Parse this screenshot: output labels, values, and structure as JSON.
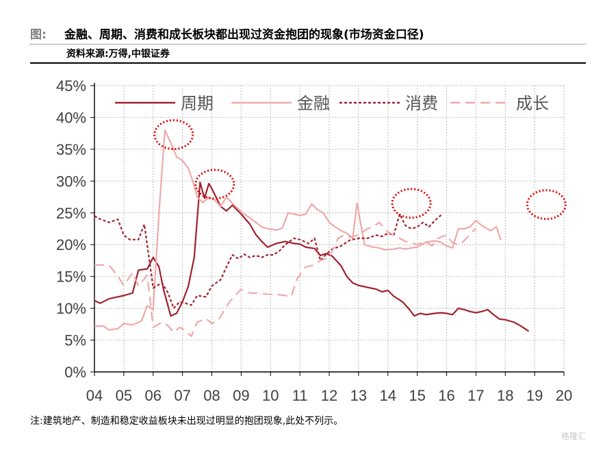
{
  "header": {
    "prefix": "图:",
    "title": "金融、周期、消费和成长板块都出现过资金抱团的现象(市场资金口径)",
    "source": "资料来源:万得,中银证券"
  },
  "footer": {
    "note": "注:建筑地产、制造和稳定收益板块未出现过明显的抱团现象,此处不列示。",
    "watermark": "格隆汇"
  },
  "chart_data": {
    "type": "line",
    "x_ticks": [
      "04",
      "05",
      "06",
      "07",
      "08",
      "09",
      "10",
      "11",
      "12",
      "13",
      "14",
      "15",
      "16",
      "17",
      "18",
      "19",
      "20"
    ],
    "y_ticks": [
      "0%",
      "5%",
      "10%",
      "15%",
      "20%",
      "25%",
      "30%",
      "35%",
      "40%",
      "45%"
    ],
    "ylim": [
      0,
      45
    ],
    "xlim": [
      2004,
      2020
    ],
    "grid": true,
    "legend_position": "top",
    "series": [
      {
        "name": "周期",
        "color": "#a0202c",
        "style": "solid",
        "points": [
          [
            2004.0,
            11.2
          ],
          [
            2004.2,
            10.8
          ],
          [
            2004.5,
            11.5
          ],
          [
            2005.0,
            12.0
          ],
          [
            2005.3,
            12.4
          ],
          [
            2005.5,
            16.0
          ],
          [
            2005.8,
            16.2
          ],
          [
            2006.0,
            18.0
          ],
          [
            2006.2,
            16.5
          ],
          [
            2006.35,
            13.0
          ],
          [
            2006.6,
            8.8
          ],
          [
            2006.8,
            9.2
          ],
          [
            2007.0,
            11.0
          ],
          [
            2007.2,
            13.5
          ],
          [
            2007.4,
            18.0
          ],
          [
            2007.5,
            24.0
          ],
          [
            2007.6,
            29.8
          ],
          [
            2007.75,
            27.3
          ],
          [
            2007.9,
            29.6
          ],
          [
            2008.0,
            28.8
          ],
          [
            2008.3,
            26.0
          ],
          [
            2008.5,
            25.3
          ],
          [
            2008.7,
            26.2
          ],
          [
            2009.0,
            24.8
          ],
          [
            2009.3,
            23.2
          ],
          [
            2009.5,
            21.6
          ],
          [
            2009.7,
            20.5
          ],
          [
            2009.9,
            19.6
          ],
          [
            2010.2,
            20.2
          ],
          [
            2010.5,
            20.5
          ],
          [
            2010.8,
            20.2
          ],
          [
            2011.0,
            20.1
          ],
          [
            2011.2,
            19.6
          ],
          [
            2011.5,
            19.4
          ],
          [
            2011.7,
            18.3
          ],
          [
            2011.9,
            18.6
          ],
          [
            2012.1,
            18.2
          ],
          [
            2012.4,
            16.7
          ],
          [
            2012.6,
            15.0
          ],
          [
            2012.8,
            14.0
          ],
          [
            2013.0,
            13.6
          ],
          [
            2013.3,
            13.3
          ],
          [
            2013.6,
            13.0
          ],
          [
            2013.8,
            12.6
          ],
          [
            2014.0,
            12.8
          ],
          [
            2014.2,
            11.9
          ],
          [
            2014.5,
            11.0
          ],
          [
            2014.7,
            10.0
          ],
          [
            2014.9,
            8.8
          ],
          [
            2015.1,
            9.2
          ],
          [
            2015.3,
            9.0
          ],
          [
            2015.6,
            9.2
          ],
          [
            2015.8,
            9.3
          ],
          [
            2016.0,
            9.2
          ],
          [
            2016.2,
            9.0
          ],
          [
            2016.4,
            10.0
          ],
          [
            2016.6,
            9.8
          ],
          [
            2016.8,
            9.5
          ],
          [
            2017.0,
            9.3
          ],
          [
            2017.2,
            9.5
          ],
          [
            2017.4,
            9.8
          ],
          [
            2017.6,
            9.0
          ],
          [
            2017.8,
            8.3
          ],
          [
            2018.0,
            8.2
          ],
          [
            2018.3,
            7.8
          ],
          [
            2018.5,
            7.3
          ],
          [
            2018.8,
            6.4
          ]
        ]
      },
      {
        "name": "金融",
        "color": "#f0a8a8",
        "style": "solid",
        "points": [
          [
            2004.0,
            7.2
          ],
          [
            2004.3,
            7.2
          ],
          [
            2004.5,
            6.6
          ],
          [
            2004.8,
            6.8
          ],
          [
            2005.0,
            7.6
          ],
          [
            2005.3,
            7.4
          ],
          [
            2005.6,
            8.0
          ],
          [
            2005.8,
            10.4
          ],
          [
            2006.0,
            9.8
          ],
          [
            2006.2,
            25.0
          ],
          [
            2006.4,
            38.0
          ],
          [
            2006.6,
            36.0
          ],
          [
            2006.8,
            33.8
          ],
          [
            2007.0,
            33.2
          ],
          [
            2007.2,
            32.0
          ],
          [
            2007.35,
            30.0
          ],
          [
            2007.5,
            27.5
          ],
          [
            2007.7,
            26.6
          ],
          [
            2007.9,
            27.5
          ],
          [
            2008.1,
            27.0
          ],
          [
            2008.3,
            26.0
          ],
          [
            2008.5,
            27.5
          ],
          [
            2008.7,
            26.5
          ],
          [
            2008.9,
            25.6
          ],
          [
            2009.1,
            24.8
          ],
          [
            2009.3,
            24.2
          ],
          [
            2009.5,
            23.5
          ],
          [
            2009.7,
            22.8
          ],
          [
            2009.9,
            22.5
          ],
          [
            2010.2,
            22.3
          ],
          [
            2010.4,
            22.6
          ],
          [
            2010.6,
            25.0
          ],
          [
            2010.8,
            24.8
          ],
          [
            2011.0,
            24.6
          ],
          [
            2011.2,
            24.8
          ],
          [
            2011.4,
            26.4
          ],
          [
            2011.6,
            25.5
          ],
          [
            2011.8,
            25.0
          ],
          [
            2012.0,
            23.5
          ],
          [
            2012.2,
            22.8
          ],
          [
            2012.4,
            22.2
          ],
          [
            2012.6,
            21.8
          ],
          [
            2012.8,
            21.0
          ],
          [
            2012.95,
            26.5
          ],
          [
            2013.2,
            20.0
          ],
          [
            2013.5,
            19.6
          ],
          [
            2013.7,
            19.5
          ],
          [
            2013.9,
            19.2
          ],
          [
            2014.2,
            19.3
          ],
          [
            2014.4,
            19.5
          ],
          [
            2014.6,
            19.3
          ],
          [
            2014.8,
            19.5
          ],
          [
            2015.0,
            19.6
          ],
          [
            2015.3,
            20.4
          ],
          [
            2015.6,
            20.6
          ],
          [
            2015.8,
            20.4
          ],
          [
            2016.0,
            19.8
          ],
          [
            2016.2,
            19.5
          ],
          [
            2016.4,
            22.5
          ],
          [
            2016.6,
            22.5
          ],
          [
            2016.8,
            22.8
          ],
          [
            2017.0,
            23.8
          ],
          [
            2017.2,
            23.0
          ],
          [
            2017.5,
            22.2
          ],
          [
            2017.7,
            22.8
          ],
          [
            2017.85,
            20.7
          ]
        ]
      },
      {
        "name": "消费",
        "color": "#a0202c",
        "style": "dot",
        "points": [
          [
            2004.0,
            24.5
          ],
          [
            2004.2,
            24.0
          ],
          [
            2004.5,
            23.5
          ],
          [
            2004.8,
            24.0
          ],
          [
            2005.0,
            21.5
          ],
          [
            2005.2,
            20.8
          ],
          [
            2005.5,
            20.8
          ],
          [
            2005.7,
            23.2
          ],
          [
            2006.0,
            13.2
          ],
          [
            2006.3,
            14.0
          ],
          [
            2006.5,
            12.5
          ],
          [
            2006.7,
            10.0
          ],
          [
            2006.9,
            11.0
          ],
          [
            2007.1,
            10.8
          ],
          [
            2007.3,
            10.5
          ],
          [
            2007.5,
            12.0
          ],
          [
            2007.8,
            11.8
          ],
          [
            2008.0,
            13.5
          ],
          [
            2008.3,
            14.5
          ],
          [
            2008.5,
            16.5
          ],
          [
            2008.7,
            18.4
          ],
          [
            2008.9,
            17.8
          ],
          [
            2009.1,
            18.5
          ],
          [
            2009.3,
            18.0
          ],
          [
            2009.5,
            18.3
          ],
          [
            2009.7,
            18.0
          ],
          [
            2009.9,
            18.4
          ],
          [
            2010.1,
            18.4
          ],
          [
            2010.3,
            19.0
          ],
          [
            2010.5,
            20.0
          ],
          [
            2010.8,
            21.0
          ],
          [
            2011.0,
            20.8
          ],
          [
            2011.3,
            20.2
          ],
          [
            2011.5,
            21.0
          ],
          [
            2011.7,
            17.5
          ],
          [
            2011.9,
            18.5
          ],
          [
            2012.1,
            19.3
          ],
          [
            2012.4,
            19.8
          ],
          [
            2012.7,
            20.7
          ],
          [
            2013.0,
            21.0
          ],
          [
            2013.3,
            21.0
          ],
          [
            2013.6,
            21.5
          ],
          [
            2013.8,
            21.3
          ],
          [
            2014.0,
            21.8
          ],
          [
            2014.2,
            21.5
          ],
          [
            2014.4,
            24.8
          ],
          [
            2014.6,
            23.0
          ],
          [
            2014.8,
            22.5
          ],
          [
            2015.0,
            22.8
          ],
          [
            2015.2,
            23.5
          ],
          [
            2015.4,
            22.8
          ],
          [
            2015.6,
            23.8
          ],
          [
            2015.85,
            24.8
          ]
        ]
      },
      {
        "name": "成长",
        "color": "#f0a8a8",
        "style": "dash",
        "points": [
          [
            2004.0,
            16.8
          ],
          [
            2004.3,
            16.8
          ],
          [
            2004.5,
            16.8
          ],
          [
            2004.8,
            15.0
          ],
          [
            2005.0,
            13.6
          ],
          [
            2005.3,
            15.6
          ],
          [
            2005.5,
            13.5
          ],
          [
            2005.8,
            15.2
          ],
          [
            2006.0,
            7.0
          ],
          [
            2006.3,
            7.8
          ],
          [
            2006.5,
            7.3
          ],
          [
            2006.7,
            6.2
          ],
          [
            2006.9,
            7.0
          ],
          [
            2007.1,
            6.5
          ],
          [
            2007.3,
            5.6
          ],
          [
            2007.5,
            7.8
          ],
          [
            2007.8,
            8.4
          ],
          [
            2008.0,
            7.6
          ],
          [
            2008.2,
            8.0
          ],
          [
            2008.4,
            9.5
          ],
          [
            2008.6,
            11.0
          ],
          [
            2008.8,
            12.0
          ],
          [
            2009.0,
            13.0
          ],
          [
            2009.3,
            12.4
          ],
          [
            2009.6,
            12.4
          ],
          [
            2009.9,
            12.2
          ],
          [
            2010.2,
            12.2
          ],
          [
            2010.5,
            12.0
          ],
          [
            2010.7,
            11.8
          ],
          [
            2010.9,
            14.6
          ],
          [
            2011.2,
            16.5
          ],
          [
            2011.5,
            16.8
          ],
          [
            2011.7,
            17.5
          ],
          [
            2012.0,
            18.0
          ],
          [
            2012.3,
            21.0
          ],
          [
            2012.5,
            21.5
          ],
          [
            2012.7,
            21.2
          ],
          [
            2013.0,
            21.5
          ],
          [
            2013.3,
            22.5
          ],
          [
            2013.5,
            22.8
          ],
          [
            2013.7,
            23.5
          ],
          [
            2014.0,
            22.0
          ],
          [
            2014.2,
            21.5
          ],
          [
            2014.4,
            21.0
          ],
          [
            2014.6,
            20.5
          ],
          [
            2014.8,
            20.3
          ],
          [
            2015.0,
            20.0
          ],
          [
            2015.3,
            20.5
          ],
          [
            2015.5,
            19.8
          ],
          [
            2015.7,
            21.0
          ],
          [
            2016.0,
            21.5
          ],
          [
            2016.2,
            20.3
          ],
          [
            2016.4,
            20.0
          ],
          [
            2016.6,
            20.6
          ],
          [
            2016.8,
            21.6
          ],
          [
            2017.0,
            22.6
          ]
        ]
      }
    ],
    "highlights": [
      [
        2006.7,
        37.3
      ],
      [
        2008.1,
        29.5
      ],
      [
        2014.8,
        26.5
      ],
      [
        2019.4,
        26.3
      ]
    ]
  }
}
